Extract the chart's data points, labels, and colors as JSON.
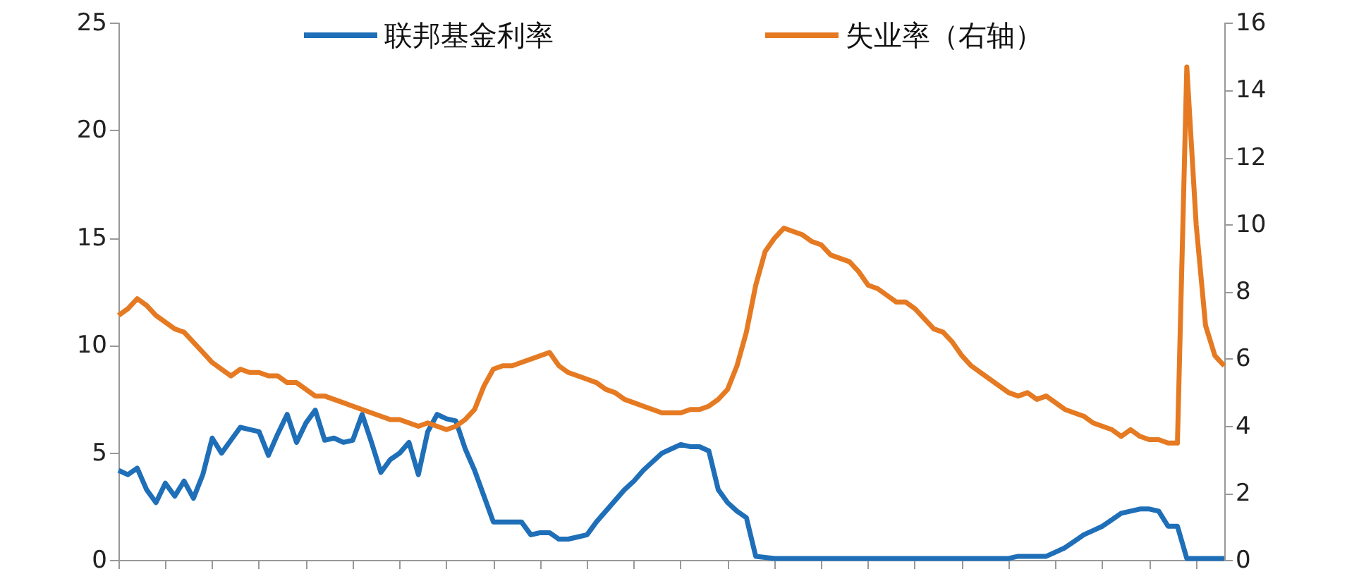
{
  "chart_data": {
    "type": "line",
    "categories": [
      null,
      null,
      null,
      null,
      null,
      null,
      null,
      null,
      null,
      null,
      null,
      null,
      null,
      null,
      null,
      null,
      null,
      null,
      null,
      null,
      null,
      null,
      null,
      null,
      null,
      null,
      null,
      null,
      null,
      null,
      null,
      null,
      null,
      null,
      null,
      null,
      null,
      null,
      null,
      null,
      null,
      null,
      null,
      null,
      null,
      null,
      null,
      null,
      null,
      null,
      null,
      null,
      null,
      null,
      null,
      null,
      null,
      null,
      null,
      null,
      null,
      null,
      null,
      null,
      null,
      null,
      null,
      null,
      null,
      null,
      null,
      null,
      null,
      null,
      null,
      null,
      null,
      null,
      null,
      null,
      null,
      null,
      null,
      null,
      null,
      null,
      null,
      null,
      null,
      null,
      null,
      null,
      null,
      null,
      null,
      null,
      null,
      null,
      null,
      null,
      null,
      null,
      null,
      null,
      null,
      null,
      null,
      null,
      null,
      null,
      null,
      null,
      null,
      null,
      null,
      null,
      null,
      null,
      null
    ],
    "series": [
      {
        "name": "联邦基金利率",
        "color": "#1f6fb8",
        "values": [
          4.2,
          4.0,
          4.3,
          3.3,
          2.7,
          3.6,
          3.0,
          3.7,
          2.9,
          4.0,
          5.7,
          5.0,
          5.6,
          6.2,
          6.1,
          6.0,
          4.9,
          5.9,
          6.8,
          5.5,
          6.4,
          7.0,
          5.6,
          5.7,
          5.5,
          5.6,
          6.8,
          5.5,
          4.1,
          4.7,
          5.0,
          5.5,
          4.0,
          6.0,
          6.8,
          6.6,
          6.5,
          5.2,
          4.2,
          3.0,
          1.8,
          1.8,
          1.8,
          1.8,
          1.2,
          1.3,
          1.3,
          1.0,
          1.0,
          1.1,
          1.2,
          1.8,
          2.3,
          2.8,
          3.3,
          3.7,
          4.2,
          4.6,
          5.0,
          5.2,
          5.4,
          5.3,
          5.3,
          5.1,
          3.3,
          2.7,
          2.3,
          2.0,
          0.2,
          0.15,
          0.1,
          0.1,
          0.1,
          0.1,
          0.1,
          0.1,
          0.1,
          0.1,
          0.1,
          0.1,
          0.1,
          0.1,
          0.1,
          0.1,
          0.1,
          0.1,
          0.1,
          0.1,
          0.1,
          0.1,
          0.1,
          0.1,
          0.1,
          0.1,
          0.1,
          0.1,
          0.2,
          0.2,
          0.2,
          0.2,
          0.4,
          0.6,
          0.9,
          1.2,
          1.4,
          1.6,
          1.9,
          2.2,
          2.3,
          2.4,
          2.4,
          2.3,
          1.6,
          1.6,
          0.1,
          0.1,
          0.1,
          0.1,
          0.1
        ]
      },
      {
        "name": "失业率（右轴）",
        "color": "#e57a22",
        "axis": "y2",
        "values": [
          7.3,
          7.5,
          7.8,
          7.6,
          7.3,
          7.1,
          6.9,
          6.8,
          6.5,
          6.2,
          5.9,
          5.7,
          5.5,
          5.7,
          5.6,
          5.6,
          5.5,
          5.5,
          5.3,
          5.3,
          5.1,
          4.9,
          4.9,
          4.8,
          4.7,
          4.6,
          4.5,
          4.4,
          4.3,
          4.2,
          4.2,
          4.1,
          4.0,
          4.1,
          4.0,
          3.9,
          4.0,
          4.2,
          4.5,
          5.2,
          5.7,
          5.8,
          5.8,
          5.9,
          6.0,
          6.1,
          6.2,
          5.8,
          5.6,
          5.5,
          5.4,
          5.3,
          5.1,
          5.0,
          4.8,
          4.7,
          4.6,
          4.5,
          4.4,
          4.4,
          4.4,
          4.5,
          4.5,
          4.6,
          4.8,
          5.1,
          5.8,
          6.8,
          8.2,
          9.2,
          9.6,
          9.9,
          9.8,
          9.7,
          9.5,
          9.4,
          9.1,
          9.0,
          8.9,
          8.6,
          8.2,
          8.1,
          7.9,
          7.7,
          7.7,
          7.5,
          7.2,
          6.9,
          6.8,
          6.5,
          6.1,
          5.8,
          5.6,
          5.4,
          5.2,
          5.0,
          4.9,
          5.0,
          4.8,
          4.9,
          4.7,
          4.5,
          4.4,
          4.3,
          4.1,
          4.0,
          3.9,
          3.7,
          3.9,
          3.7,
          3.6,
          3.6,
          3.5,
          3.5,
          14.7,
          10.0,
          7.0,
          6.1,
          5.8
        ]
      }
    ],
    "ylim": [
      0,
      25
    ],
    "yticks": [
      0,
      5,
      10,
      15,
      20,
      25
    ],
    "y2lim": [
      0,
      16
    ],
    "y2ticks": [
      0,
      2,
      4,
      6,
      8,
      10,
      12,
      14,
      16
    ],
    "grid": false,
    "legend": "top",
    "tick_labels": "y",
    "line_style": "solid"
  }
}
